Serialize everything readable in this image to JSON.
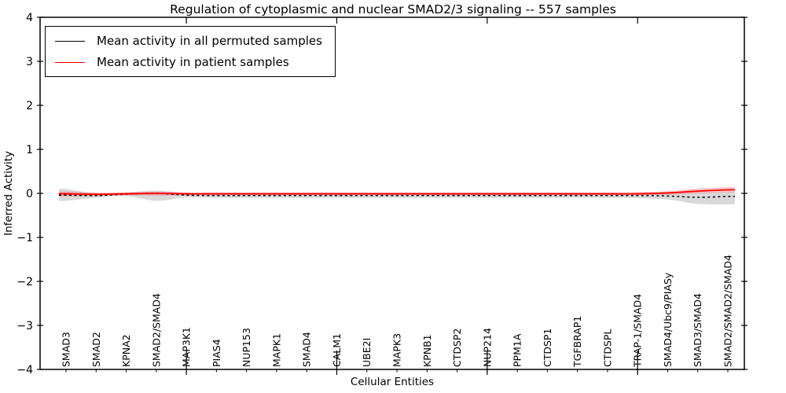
{
  "chart_data": {
    "type": "line",
    "title": "Regulation of cytoplasmic and nuclear SMAD2/3 signaling -- 557 samples",
    "xlabel": "Cellular Entities",
    "ylabel": "Inferred Activity",
    "ylim": [
      -4,
      4
    ],
    "ytick_values": [
      4,
      3,
      2,
      1,
      0,
      -1,
      -2,
      -3,
      -4
    ],
    "ytick_labels": [
      "4",
      "3",
      "2",
      "1",
      "0",
      "−1",
      "−2",
      "−3",
      "−4"
    ],
    "grid": false,
    "legend_position": "upper left",
    "frame_color": "#000000",
    "categories": [
      "SMAD3",
      "SMAD2",
      "KPNA2",
      "SMAD2/SMAD4",
      "MAP3K1",
      "PIAS4",
      "NUP153",
      "MAPK1",
      "SMAD4",
      "CALM1",
      "UBE2I",
      "MAPK3",
      "KPNB1",
      "CTDSP2",
      "NUP214",
      "PPM1A",
      "CTDSP1",
      "TGFBRAP1",
      "CTDSPL",
      "TRAP-1/SMAD4",
      "SMAD4/Ubc9/PIASy",
      "SMAD3/SMAD4",
      "SMAD2/SMAD2/SMAD4"
    ],
    "major_tick_category_indices": [
      4,
      9,
      14,
      19
    ],
    "series": [
      {
        "name": "Mean activity in all permuted samples",
        "color": "#000000",
        "line_style": "dashed",
        "band_color": "rgba(0,0,0,0.15)",
        "values": [
          -0.04,
          -0.05,
          -0.02,
          0.0,
          -0.04,
          -0.05,
          -0.05,
          -0.05,
          -0.05,
          -0.05,
          -0.05,
          -0.05,
          -0.05,
          -0.05,
          -0.05,
          -0.05,
          -0.05,
          -0.05,
          -0.05,
          -0.05,
          -0.06,
          -0.09,
          -0.07
        ],
        "band_upper": [
          0.1,
          0.0,
          0.02,
          0.06,
          0.01,
          -0.01,
          -0.01,
          -0.01,
          -0.01,
          -0.01,
          -0.01,
          -0.01,
          -0.01,
          -0.01,
          -0.01,
          -0.01,
          -0.01,
          -0.01,
          -0.01,
          -0.01,
          0.0,
          0.02,
          0.03
        ],
        "band_lower": [
          -0.17,
          -0.1,
          -0.06,
          -0.17,
          -0.09,
          -0.1,
          -0.1,
          -0.1,
          -0.1,
          -0.1,
          -0.1,
          -0.1,
          -0.1,
          -0.1,
          -0.1,
          -0.1,
          -0.1,
          -0.1,
          -0.1,
          -0.11,
          -0.14,
          -0.24,
          -0.25
        ]
      },
      {
        "name": "Mean activity in patient samples",
        "color": "#ff0000",
        "line_style": "solid",
        "band_color": "rgba(255,0,0,0.22)",
        "values": [
          -0.01,
          -0.02,
          -0.01,
          0.0,
          -0.01,
          -0.01,
          -0.01,
          -0.01,
          -0.01,
          -0.01,
          -0.01,
          -0.01,
          -0.01,
          -0.01,
          -0.01,
          -0.01,
          -0.01,
          -0.01,
          -0.01,
          -0.01,
          0.01,
          0.05,
          0.08
        ],
        "band_upper": [
          0.04,
          0.02,
          0.02,
          0.04,
          0.02,
          0.02,
          0.02,
          0.02,
          0.02,
          0.02,
          0.02,
          0.02,
          0.02,
          0.02,
          0.02,
          0.02,
          0.02,
          0.02,
          0.02,
          0.03,
          0.05,
          0.11,
          0.14
        ],
        "band_lower": [
          -0.07,
          -0.06,
          -0.04,
          -0.05,
          -0.04,
          -0.04,
          -0.04,
          -0.04,
          -0.04,
          -0.04,
          -0.04,
          -0.04,
          -0.04,
          -0.04,
          -0.04,
          -0.04,
          -0.04,
          -0.04,
          -0.04,
          -0.04,
          -0.03,
          0.0,
          0.02
        ]
      }
    ]
  }
}
